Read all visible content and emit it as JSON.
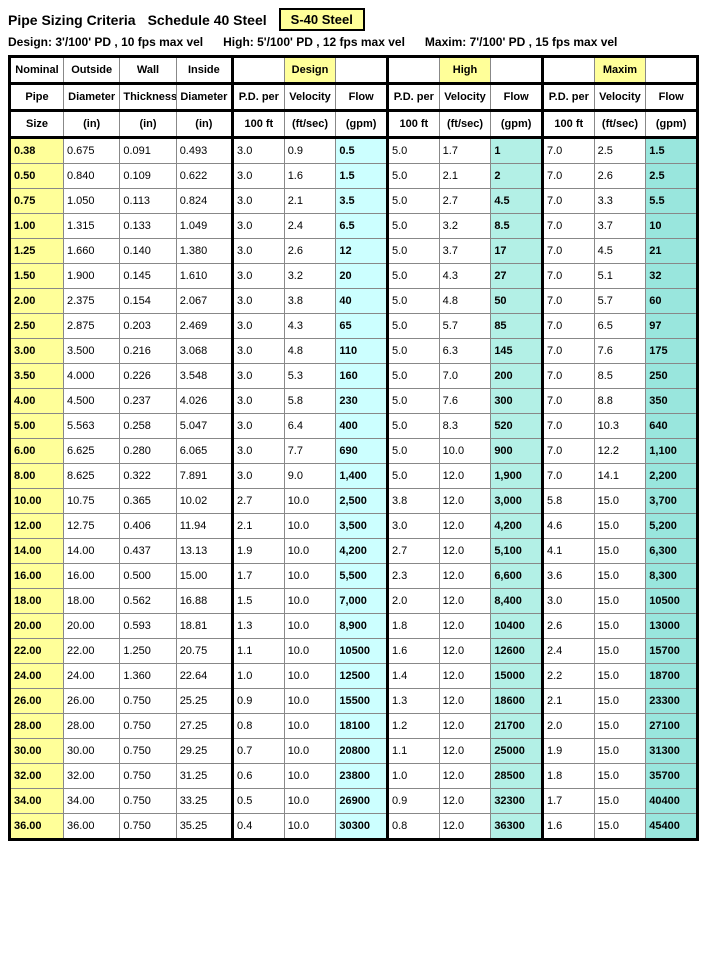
{
  "title": "Pipe Sizing Criteria",
  "subtitle": "Schedule 40 Steel",
  "material_box": "S-40 Steel",
  "criteria": {
    "design": "Design:  3'/100' PD , 10 fps max vel",
    "high": "High: 5'/100' PD , 12 fps max vel",
    "maxim": "Maxim: 7'/100' PD , 15 fps max vel"
  },
  "headers": {
    "row1": [
      "Nominal",
      "Outside",
      "Wall",
      "Inside",
      "",
      "Design",
      "",
      "",
      "High",
      "",
      "",
      "Maxim",
      ""
    ],
    "row2": [
      "Pipe",
      "Diameter",
      "Thickness",
      "Diameter",
      "P.D. per",
      "Velocity",
      "Flow",
      "P.D. per",
      "Velocity",
      "Flow",
      "P.D. per",
      "Velocity",
      "Flow"
    ],
    "row3": [
      "Size",
      "(in)",
      "(in)",
      "(in)",
      "100 ft",
      "(ft/sec)",
      "(gpm)",
      "100 ft",
      "(ft/sec)",
      "(gpm)",
      "100 ft",
      "(ft/sec)",
      "(gpm)"
    ]
  },
  "colors": {
    "yellow": "#ffff99",
    "cyan1": "#ccffff",
    "cyan2": "#b3f0e6",
    "cyan3": "#99e6dd"
  },
  "rows": [
    [
      "0.38",
      "0.675",
      "0.091",
      "0.493",
      "3.0",
      "0.9",
      "0.5",
      "5.0",
      "1.7",
      "1",
      "7.0",
      "2.5",
      "1.5"
    ],
    [
      "0.50",
      "0.840",
      "0.109",
      "0.622",
      "3.0",
      "1.6",
      "1.5",
      "5.0",
      "2.1",
      "2",
      "7.0",
      "2.6",
      "2.5"
    ],
    [
      "0.75",
      "1.050",
      "0.113",
      "0.824",
      "3.0",
      "2.1",
      "3.5",
      "5.0",
      "2.7",
      "4.5",
      "7.0",
      "3.3",
      "5.5"
    ],
    [
      "1.00",
      "1.315",
      "0.133",
      "1.049",
      "3.0",
      "2.4",
      "6.5",
      "5.0",
      "3.2",
      "8.5",
      "7.0",
      "3.7",
      "10"
    ],
    [
      "1.25",
      "1.660",
      "0.140",
      "1.380",
      "3.0",
      "2.6",
      "12",
      "5.0",
      "3.7",
      "17",
      "7.0",
      "4.5",
      "21"
    ],
    [
      "1.50",
      "1.900",
      "0.145",
      "1.610",
      "3.0",
      "3.2",
      "20",
      "5.0",
      "4.3",
      "27",
      "7.0",
      "5.1",
      "32"
    ],
    [
      "2.00",
      "2.375",
      "0.154",
      "2.067",
      "3.0",
      "3.8",
      "40",
      "5.0",
      "4.8",
      "50",
      "7.0",
      "5.7",
      "60"
    ],
    [
      "2.50",
      "2.875",
      "0.203",
      "2.469",
      "3.0",
      "4.3",
      "65",
      "5.0",
      "5.7",
      "85",
      "7.0",
      "6.5",
      "97"
    ],
    [
      "3.00",
      "3.500",
      "0.216",
      "3.068",
      "3.0",
      "4.8",
      "110",
      "5.0",
      "6.3",
      "145",
      "7.0",
      "7.6",
      "175"
    ],
    [
      "3.50",
      "4.000",
      "0.226",
      "3.548",
      "3.0",
      "5.3",
      "160",
      "5.0",
      "7.0",
      "200",
      "7.0",
      "8.5",
      "250"
    ],
    [
      "4.00",
      "4.500",
      "0.237",
      "4.026",
      "3.0",
      "5.8",
      "230",
      "5.0",
      "7.6",
      "300",
      "7.0",
      "8.8",
      "350"
    ],
    [
      "5.00",
      "5.563",
      "0.258",
      "5.047",
      "3.0",
      "6.4",
      "400",
      "5.0",
      "8.3",
      "520",
      "7.0",
      "10.3",
      "640"
    ],
    [
      "6.00",
      "6.625",
      "0.280",
      "6.065",
      "3.0",
      "7.7",
      "690",
      "5.0",
      "10.0",
      "900",
      "7.0",
      "12.2",
      "1,100"
    ],
    [
      "8.00",
      "8.625",
      "0.322",
      "7.891",
      "3.0",
      "9.0",
      "1,400",
      "5.0",
      "12.0",
      "1,900",
      "7.0",
      "14.1",
      "2,200"
    ],
    [
      "10.00",
      "10.75",
      "0.365",
      "10.02",
      "2.7",
      "10.0",
      "2,500",
      "3.8",
      "12.0",
      "3,000",
      "5.8",
      "15.0",
      "3,700"
    ],
    [
      "12.00",
      "12.75",
      "0.406",
      "11.94",
      "2.1",
      "10.0",
      "3,500",
      "3.0",
      "12.0",
      "4,200",
      "4.6",
      "15.0",
      "5,200"
    ],
    [
      "14.00",
      "14.00",
      "0.437",
      "13.13",
      "1.9",
      "10.0",
      "4,200",
      "2.7",
      "12.0",
      "5,100",
      "4.1",
      "15.0",
      "6,300"
    ],
    [
      "16.00",
      "16.00",
      "0.500",
      "15.00",
      "1.7",
      "10.0",
      "5,500",
      "2.3",
      "12.0",
      "6,600",
      "3.6",
      "15.0",
      "8,300"
    ],
    [
      "18.00",
      "18.00",
      "0.562",
      "16.88",
      "1.5",
      "10.0",
      "7,000",
      "2.0",
      "12.0",
      "8,400",
      "3.0",
      "15.0",
      "10500"
    ],
    [
      "20.00",
      "20.00",
      "0.593",
      "18.81",
      "1.3",
      "10.0",
      "8,900",
      "1.8",
      "12.0",
      "10400",
      "2.6",
      "15.0",
      "13000"
    ],
    [
      "22.00",
      "22.00",
      "1.250",
      "20.75",
      "1.1",
      "10.0",
      "10500",
      "1.6",
      "12.0",
      "12600",
      "2.4",
      "15.0",
      "15700"
    ],
    [
      "24.00",
      "24.00",
      "1.360",
      "22.64",
      "1.0",
      "10.0",
      "12500",
      "1.4",
      "12.0",
      "15000",
      "2.2",
      "15.0",
      "18700"
    ],
    [
      "26.00",
      "26.00",
      "0.750",
      "25.25",
      "0.9",
      "10.0",
      "15500",
      "1.3",
      "12.0",
      "18600",
      "2.1",
      "15.0",
      "23300"
    ],
    [
      "28.00",
      "28.00",
      "0.750",
      "27.25",
      "0.8",
      "10.0",
      "18100",
      "1.2",
      "12.0",
      "21700",
      "2.0",
      "15.0",
      "27100"
    ],
    [
      "30.00",
      "30.00",
      "0.750",
      "29.25",
      "0.7",
      "10.0",
      "20800",
      "1.1",
      "12.0",
      "25000",
      "1.9",
      "15.0",
      "31300"
    ],
    [
      "32.00",
      "32.00",
      "0.750",
      "31.25",
      "0.6",
      "10.0",
      "23800",
      "1.0",
      "12.0",
      "28500",
      "1.8",
      "15.0",
      "35700"
    ],
    [
      "34.00",
      "34.00",
      "0.750",
      "33.25",
      "0.5",
      "10.0",
      "26900",
      "0.9",
      "12.0",
      "32300",
      "1.7",
      "15.0",
      "40400"
    ],
    [
      "36.00",
      "36.00",
      "0.750",
      "35.25",
      "0.4",
      "10.0",
      "30300",
      "0.8",
      "12.0",
      "36300",
      "1.6",
      "15.0",
      "45400"
    ]
  ]
}
